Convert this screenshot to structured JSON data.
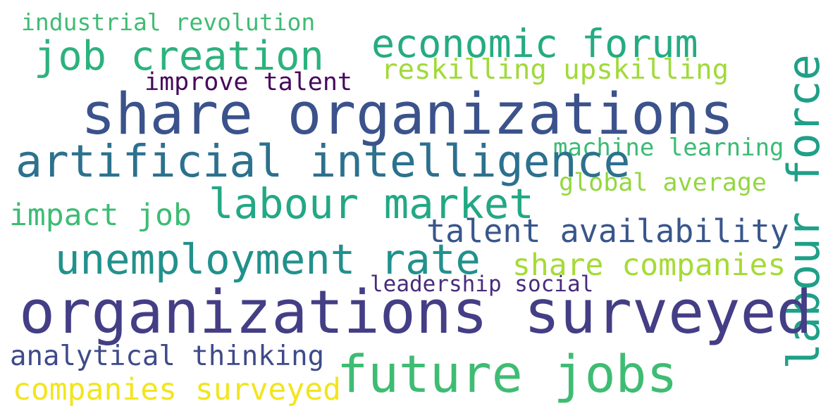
{
  "words": {
    "industrial_revolution": {
      "text": "industrial revolution",
      "color": "#3fbc73"
    },
    "job_creation": {
      "text": "job creation",
      "color": "#2db27d"
    },
    "economic_forum": {
      "text": "economic forum",
      "color": "#25ab82"
    },
    "reskilling_upskilling": {
      "text": "reskilling upskilling",
      "color": "#a0da39"
    },
    "improve_talent": {
      "text": "improve talent",
      "color": "#46085c"
    },
    "share_organizations": {
      "text": "share organizations",
      "color": "#3b528b"
    },
    "labour_force": {
      "text": "labour force",
      "color": "#1fa088"
    },
    "machine_learning": {
      "text": "machine learning",
      "color": "#3bbb75"
    },
    "artificial_intelligence": {
      "text": "artificial intelligence",
      "color": "#2c718e"
    },
    "global_average": {
      "text": "global average",
      "color": "#93d741"
    },
    "labour_market": {
      "text": "labour market",
      "color": "#22a884"
    },
    "impact_job": {
      "text": "impact job",
      "color": "#3dbc74"
    },
    "talent_availability": {
      "text": "talent availability",
      "color": "#39568c"
    },
    "unemployment_rate": {
      "text": "unemployment rate",
      "color": "#21918c"
    },
    "share_companies": {
      "text": "share companies",
      "color": "#a5db36"
    },
    "leadership_social": {
      "text": "leadership social",
      "color": "#472d7b"
    },
    "organizations_surveyed": {
      "text": "organizations surveyed",
      "color": "#433e85"
    },
    "analytical_thinking": {
      "text": "analytical thinking",
      "color": "#3e4a89"
    },
    "future_jobs": {
      "text": "future jobs",
      "color": "#3fbc73"
    },
    "companies_surveyed": {
      "text": "companies surveyed",
      "color": "#f2e51d"
    }
  }
}
